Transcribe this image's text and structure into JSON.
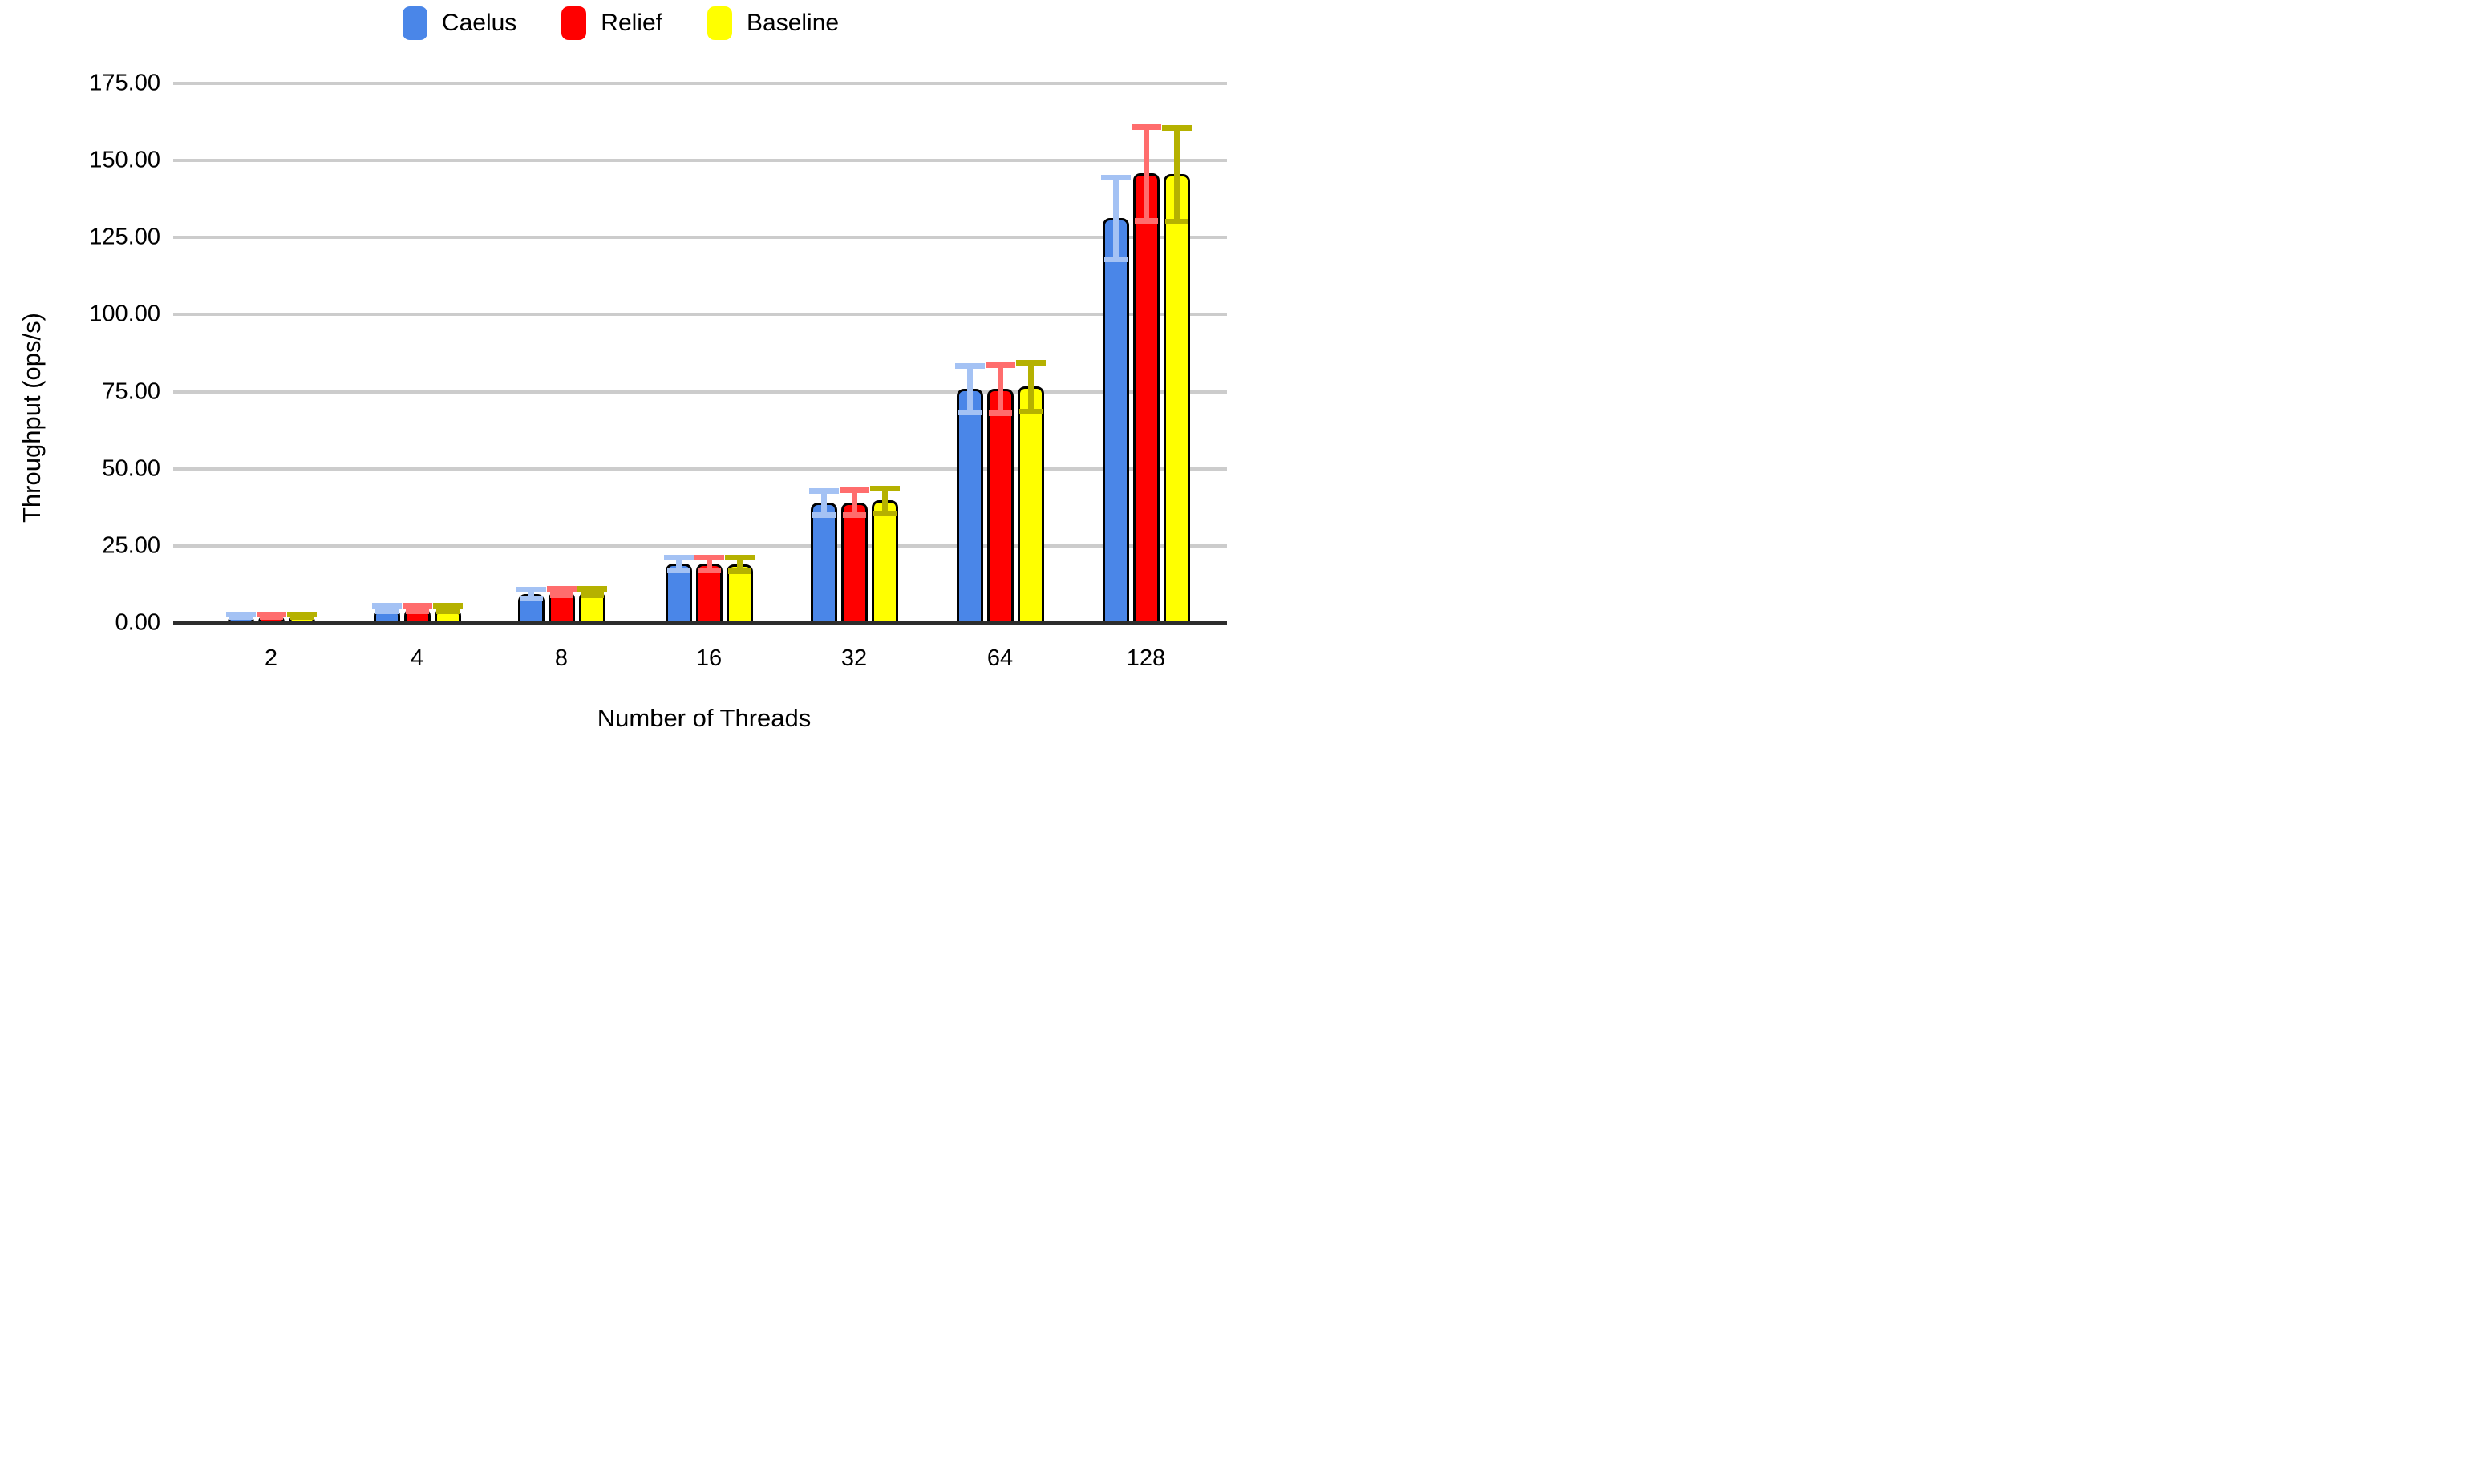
{
  "chart_data": {
    "type": "bar",
    "title": "",
    "xlabel": "Number of Threads",
    "ylabel": "Throughput (ops/s)",
    "categories": [
      "2",
      "4",
      "8",
      "16",
      "32",
      "64",
      "128"
    ],
    "series": [
      {
        "name": "Caelus",
        "color": "#4A86E8",
        "error_color": "#A4C2F4",
        "values": [
          2.5,
          4.8,
          9.4,
          19.2,
          38.9,
          75.9,
          131.4
        ],
        "errors": [
          0.4,
          0.9,
          1.4,
          2.1,
          3.9,
          7.6,
          13.3
        ]
      },
      {
        "name": "Relief",
        "color": "#FF0000",
        "error_color": "#FF6D6D",
        "values": [
          2.5,
          4.8,
          10.2,
          19.2,
          39.1,
          75.9,
          145.8
        ],
        "errors": [
          0.4,
          0.9,
          1.1,
          2.1,
          4.0,
          7.9,
          15.2
        ]
      },
      {
        "name": "Baseline",
        "color": "#FFFF00",
        "error_color": "#B5B100",
        "values": [
          2.5,
          4.7,
          10.1,
          19.0,
          39.7,
          76.6,
          145.5
        ],
        "errors": [
          0.4,
          0.9,
          1.1,
          2.2,
          4.1,
          7.9,
          15.1
        ]
      }
    ],
    "ylim": [
      0,
      175
    ],
    "ytick_step": 25,
    "ytick_labels": [
      "0.00",
      "25.00",
      "50.00",
      "75.00",
      "100.00",
      "125.00",
      "150.00",
      "175.00"
    ],
    "grid": true,
    "legend_position": "top",
    "gridline_color": "#CCCCCC",
    "axis_color": "#2D2D2D"
  }
}
